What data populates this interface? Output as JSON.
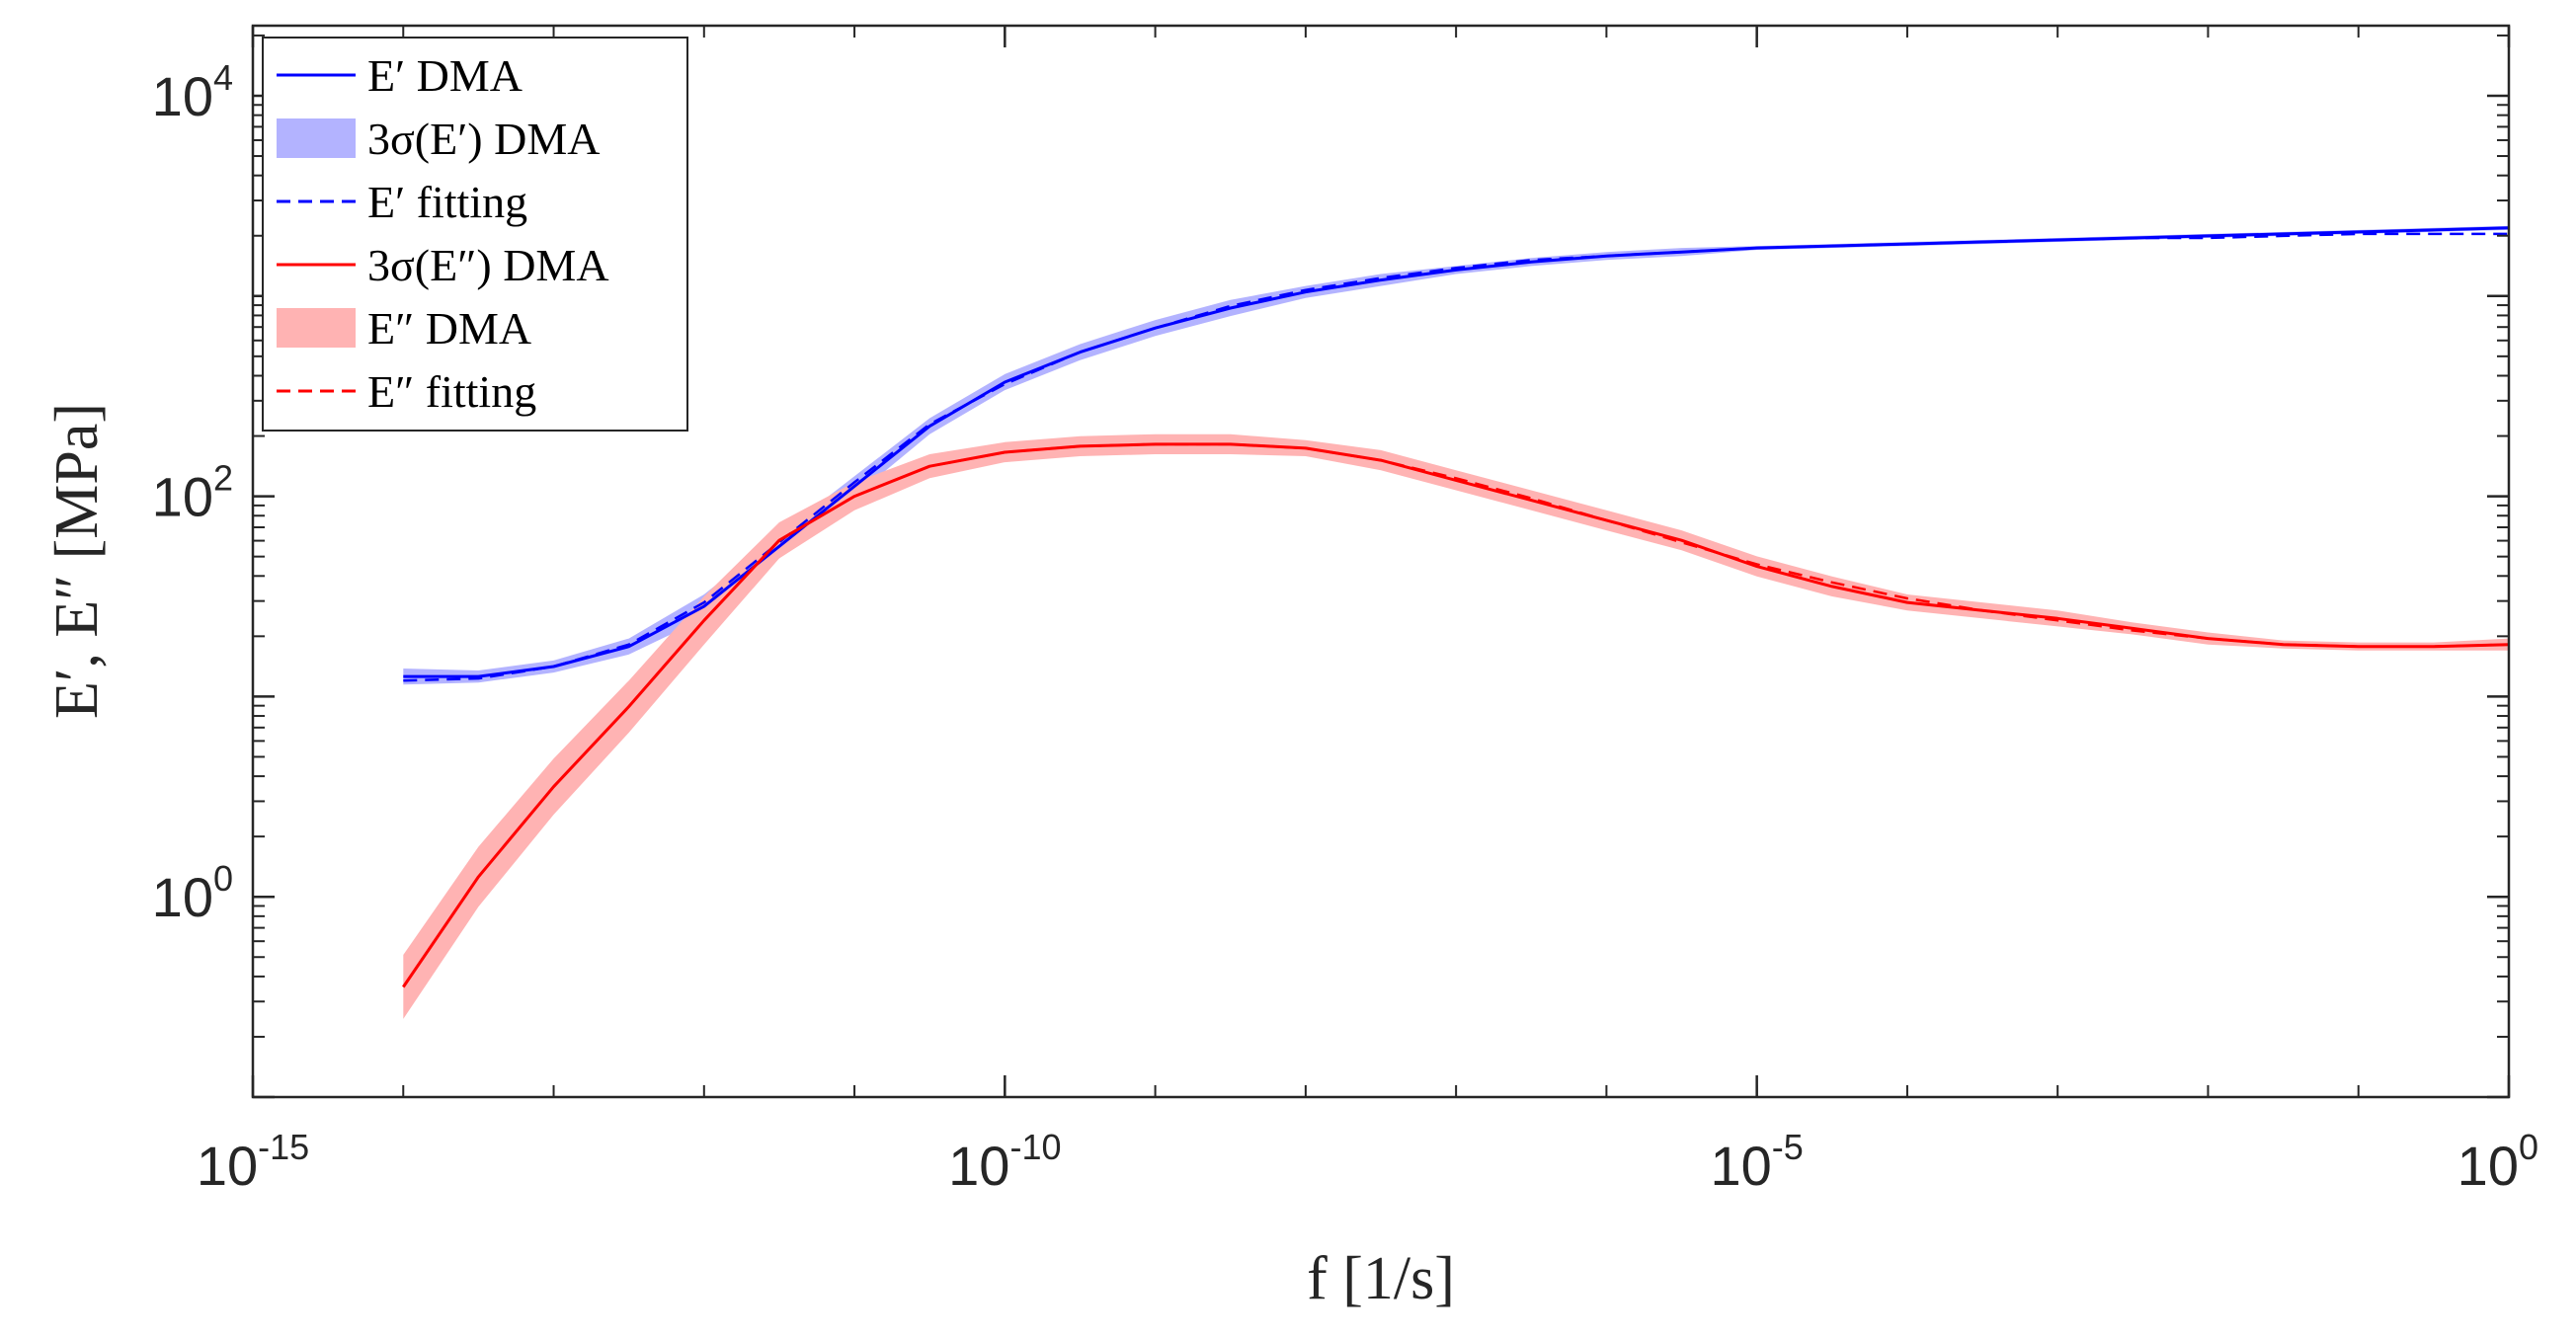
{
  "chart_data": {
    "type": "line",
    "title": "",
    "xlabel": "f [1/s]",
    "ylabel": "E′, E″ [MPa]",
    "xscale": "log",
    "yscale": "log",
    "xlim_exp": [
      -15,
      0
    ],
    "ylim_exp": [
      -1,
      4.35
    ],
    "x_major_ticks": [
      {
        "exp": -15,
        "base": "10",
        "sup": "-15"
      },
      {
        "exp": -10,
        "base": "10",
        "sup": "-10"
      },
      {
        "exp": -5,
        "base": "10",
        "sup": "-5"
      },
      {
        "exp": 0,
        "base": "10",
        "sup": "0"
      }
    ],
    "y_major_ticks": [
      {
        "exp": 0,
        "base": "10",
        "sup": "0"
      },
      {
        "exp": 2,
        "base": "10",
        "sup": "2"
      },
      {
        "exp": 4,
        "base": "10",
        "sup": "4"
      }
    ],
    "legend_position": "top-left",
    "legend": [
      {
        "label": "E′ DMA",
        "style": "solid",
        "color": "#0000ff"
      },
      {
        "label": "3σ(E′) DMA",
        "style": "band",
        "color": "#b3b3ff"
      },
      {
        "label": "E′ fitting",
        "style": "dashed",
        "color": "#0000ff"
      },
      {
        "label": "3σ(E″) DMA",
        "style": "solid",
        "color": "#ff0000"
      },
      {
        "label": "E″ DMA",
        "style": "band",
        "color": "#ffb3b3"
      },
      {
        "label": "E″ fitting",
        "style": "dashed",
        "color": "#ff0000"
      }
    ],
    "series": [
      {
        "name": "E′ DMA",
        "color": "#0000ff",
        "log10_x": [
          -14,
          -13.5,
          -13,
          -12.5,
          -12,
          -11.5,
          -11,
          -10.5,
          -10,
          -9.5,
          -9,
          -8.5,
          -8,
          -7.5,
          -7,
          -6.5,
          -6,
          -5.5,
          -5,
          -4.5,
          -4,
          -3.5,
          -3,
          -2.5,
          -2,
          -1.5,
          -1,
          -0.5,
          0
        ],
        "log10_y": [
          1.1,
          1.1,
          1.15,
          1.25,
          1.45,
          1.75,
          2.05,
          2.35,
          2.57,
          2.72,
          2.84,
          2.94,
          3.02,
          3.08,
          3.13,
          3.17,
          3.2,
          3.22,
          3.24,
          3.25,
          3.26,
          3.27,
          3.28,
          3.29,
          3.3,
          3.31,
          3.32,
          3.33,
          3.34
        ],
        "band_halfwidth_log10": [
          0.04,
          0.03,
          0.03,
          0.04,
          0.06,
          0.06,
          0.05,
          0.04,
          0.04,
          0.04,
          0.04,
          0.04,
          0.03,
          0.03,
          0.02,
          0.02,
          0.02,
          0.02,
          0.01,
          0.01,
          0.01,
          0.01,
          0.01,
          0.01,
          0.01,
          0.01,
          0.01,
          0.01,
          0.01
        ]
      },
      {
        "name": "E′ fitting",
        "color": "#0000ff",
        "log10_x": [
          -14,
          -13.5,
          -13,
          -12.5,
          -12,
          -11.5,
          -11,
          -10.5,
          -10,
          -9.5,
          -9,
          -8.5,
          -8,
          -7.5,
          -7,
          -6.5,
          -6,
          -5.5,
          -5,
          -4.5,
          -4,
          -3.5,
          -3,
          -2.5,
          -2,
          -1.5,
          -1,
          -0.5,
          0
        ],
        "log10_y": [
          1.08,
          1.09,
          1.15,
          1.26,
          1.47,
          1.77,
          2.07,
          2.36,
          2.56,
          2.72,
          2.84,
          2.95,
          3.03,
          3.09,
          3.14,
          3.18,
          3.2,
          3.22,
          3.24,
          3.25,
          3.26,
          3.27,
          3.28,
          3.29,
          3.29,
          3.3,
          3.31,
          3.31,
          3.31
        ]
      },
      {
        "name": "E″ DMA",
        "color": "#ff0000",
        "log10_x": [
          -14,
          -13.5,
          -13,
          -12.5,
          -12,
          -11.5,
          -11,
          -10.5,
          -10,
          -9.5,
          -9,
          -8.5,
          -8,
          -7.5,
          -7,
          -6.5,
          -6,
          -5.5,
          -5,
          -4.5,
          -4,
          -3.5,
          -3,
          -2.5,
          -2,
          -1.5,
          -1,
          -0.5,
          0
        ],
        "log10_y": [
          -0.45,
          0.1,
          0.55,
          0.95,
          1.38,
          1.78,
          2.0,
          2.15,
          2.22,
          2.25,
          2.26,
          2.26,
          2.24,
          2.18,
          2.08,
          1.98,
          1.88,
          1.78,
          1.65,
          1.55,
          1.47,
          1.43,
          1.39,
          1.34,
          1.29,
          1.26,
          1.25,
          1.25,
          1.26
        ],
        "band_halfwidth_log10": [
          0.16,
          0.15,
          0.14,
          0.13,
          0.12,
          0.09,
          0.07,
          0.06,
          0.05,
          0.05,
          0.05,
          0.05,
          0.04,
          0.05,
          0.05,
          0.05,
          0.05,
          0.05,
          0.05,
          0.05,
          0.04,
          0.04,
          0.04,
          0.03,
          0.03,
          0.02,
          0.02,
          0.02,
          0.03
        ]
      },
      {
        "name": "E″ fitting",
        "color": "#ff0000",
        "log10_x": [
          -14,
          -13.5,
          -13,
          -12.5,
          -12,
          -11.5,
          -11,
          -10.5,
          -10,
          -9.5,
          -9,
          -8.5,
          -8,
          -7.5,
          -7,
          -6.5,
          -6,
          -5.5,
          -5,
          -4.5,
          -4,
          -3.5,
          -3,
          -2.5,
          -2,
          -1.5,
          -1,
          -0.5,
          0
        ],
        "log10_y": [
          -0.45,
          0.1,
          0.55,
          0.95,
          1.38,
          1.78,
          2.0,
          2.15,
          2.22,
          2.25,
          2.26,
          2.26,
          2.24,
          2.18,
          2.09,
          1.99,
          1.88,
          1.77,
          1.66,
          1.57,
          1.49,
          1.43,
          1.38,
          1.33,
          1.29,
          1.26,
          1.25,
          1.25,
          1.26
        ]
      }
    ]
  }
}
